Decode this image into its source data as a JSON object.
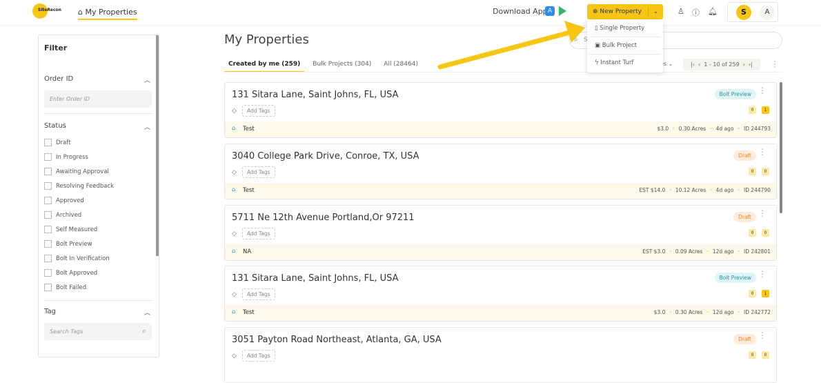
{
  "header": {
    "logo_text": "SiteRecon",
    "nav_label": "My Properties",
    "download_label": "Download App",
    "new_property_label": "New Property",
    "avatar_letter": "S",
    "avatar2_letter": "A"
  },
  "dropdown": {
    "items": [
      {
        "label": "Single Property",
        "icon": "file-icon"
      },
      {
        "label": "Bulk Project",
        "icon": "files-icon"
      },
      {
        "label": "Instant Turf",
        "icon": "bolt-icon"
      }
    ]
  },
  "filter": {
    "title": "Filter",
    "order_id_label": "Order ID",
    "order_id_placeholder": "Enter Order ID",
    "status_label": "Status",
    "statuses": [
      "Draft",
      "In Progress",
      "Awaiting Approval",
      "Resolving Feedback",
      "Approved",
      "Archived",
      "Self Measured",
      "Bolt Preview",
      "Bolt In Verification",
      "Bolt Approved",
      "Bolt Failed"
    ],
    "tag_label": "Tag",
    "tag_placeholder": "Search Tags"
  },
  "main": {
    "title": "My Properties",
    "search_placeholder": "S",
    "tabs": [
      {
        "label": "Created by me (259)",
        "active": true
      },
      {
        "label": "Bulk Projects (304)"
      },
      {
        "label": "All (28464)"
      }
    ],
    "per_page_label": "es",
    "pagination": "1 - 10 of 259"
  },
  "cards": [
    {
      "address": "131 Sitara Lane, Saint Johns, FL, USA",
      "status": "Bolt Preview",
      "tags_label": "Add Tags",
      "comments": "0",
      "notes": "1",
      "name": "Test",
      "price": "$3.0",
      "acres": "0.30 Acres",
      "age": "4d ago",
      "id": "ID 244793"
    },
    {
      "address": "3040 College Park Drive, Conroe, TX, USA",
      "status": "Draft",
      "tags_label": "Add Tags",
      "comments": "0",
      "notes": "0",
      "name": "Test",
      "price": "EST $14.0",
      "acres": "10.12 Acres",
      "age": "4d ago",
      "id": "ID 244790"
    },
    {
      "address": "5711 Ne 12th Avenue Portland,Or 97211",
      "status": "Draft",
      "tags_label": "Add Tags",
      "comments": "0",
      "notes": "0",
      "name": "NA",
      "price": "EST $3.0",
      "acres": "0.09 Acres",
      "age": "12d ago",
      "id": "ID 242801"
    },
    {
      "address": "131 Sitara Lane, Saint Johns, FL, USA",
      "status": "Bolt Preview",
      "tags_label": "Add Tags",
      "comments": "0",
      "notes": "1",
      "name": "Test",
      "price": "$3.0",
      "acres": "0.30 Acres",
      "age": "12d ago",
      "id": "ID 242772"
    },
    {
      "address": "3051 Payton Road Northeast, Atlanta, GA, USA",
      "status": "Draft",
      "tags_label": "Add Tags",
      "comments": "0",
      "notes": "0"
    }
  ],
  "colors": {
    "accent": "#f7c615",
    "bolt_preview": "#1a9a9a",
    "draft": "#f08a2a"
  }
}
